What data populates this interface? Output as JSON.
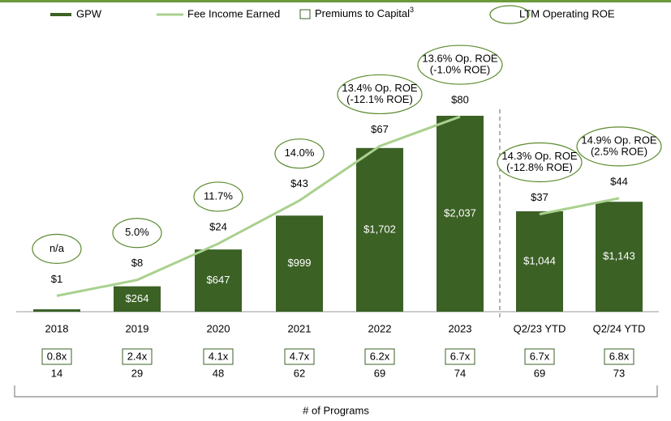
{
  "chart_data": {
    "type": "bar_line",
    "categories": [
      "2018",
      "2019",
      "2020",
      "2021",
      "2022",
      "2023",
      "Q2/23 YTD",
      "Q2/24 YTD"
    ],
    "divider_after": 5,
    "ylim": [
      0,
      2500
    ],
    "y2lim": [
      -6,
      100
    ],
    "series": [
      {
        "name": "GPW",
        "color": "#3b6125",
        "values": [
          25,
          264,
          647,
          999,
          1702,
          2037,
          1044,
          1143
        ],
        "value_labels": [
          null,
          "$264",
          "$647",
          "$999",
          "$1,702",
          "$2,037",
          "$1,044",
          "$1,143"
        ]
      },
      {
        "name": "Fee Income Earned",
        "color": "#a9d18e",
        "axis": "y2",
        "values": [
          1,
          8,
          24,
          43,
          67,
          80,
          37,
          44
        ],
        "value_labels": [
          "$1",
          "$8",
          "$24",
          "$43",
          "$67",
          "$80",
          "$37",
          "$44"
        ]
      }
    ],
    "premiums_to_capital": {
      "name": "Premiums to Capital",
      "footnote": "3",
      "color": "#3b6125",
      "values": [
        0.8,
        2.4,
        4.1,
        4.7,
        6.2,
        6.7,
        6.7,
        6.8
      ],
      "value_labels": [
        "0.8x",
        "2.4x",
        "4.1x",
        "4.7x",
        "6.2x",
        "6.7x",
        "6.7x",
        "6.8x"
      ]
    },
    "roe": {
      "name": "LTM Operating ROE",
      "color": "#5a8a2e",
      "labels": [
        [
          "n/a"
        ],
        [
          "5.0%"
        ],
        [
          "11.7%"
        ],
        [
          "14.0%"
        ],
        [
          "13.4% Op. ROE",
          "(-12.1% ROE)"
        ],
        [
          "13.6% Op. ROE",
          "(-1.0% ROE)"
        ],
        [
          "14.3% Op. ROE",
          "(-12.8% ROE)"
        ],
        [
          "14.9% Op. ROE",
          "(2.5% ROE)"
        ]
      ]
    },
    "programs": {
      "title": "# of Programs",
      "values": [
        14,
        29,
        48,
        62,
        69,
        74,
        69,
        73
      ]
    }
  }
}
